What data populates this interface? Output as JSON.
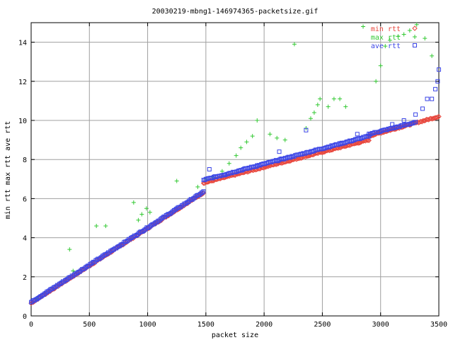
{
  "chart_data": {
    "type": "scatter",
    "title": "20030219-mbng1-146974365-packetsize.gif",
    "xlabel": "packet size",
    "ylabel": "min rtt max rtt ave rtt",
    "xlim": [
      0,
      3500
    ],
    "ylim": [
      0,
      15
    ],
    "xticks": [
      0,
      500,
      1000,
      1500,
      2000,
      2500,
      3000,
      3500
    ],
    "yticks": [
      0,
      2,
      4,
      6,
      8,
      10,
      12,
      14
    ],
    "grid": true,
    "legend_position": "top-right",
    "series": [
      {
        "name": "min rtt",
        "marker": "diamond",
        "color": "#e8463c",
        "segments": [
          {
            "x_range": [
              0,
              1480
            ],
            "y_range": [
              0.65,
              6.3
            ]
          },
          {
            "x_range": [
              1480,
              2900
            ],
            "y_range": [
              6.8,
              9.0
            ]
          },
          {
            "x_range": [
              2900,
              3500
            ],
            "y_range": [
              9.2,
              10.2
            ]
          }
        ]
      },
      {
        "name": "max rtt",
        "marker": "plus",
        "color": "#34c934",
        "points": [
          [
            50,
            0.9
          ],
          [
            330,
            3.4
          ],
          [
            360,
            2.3
          ],
          [
            560,
            4.6
          ],
          [
            640,
            4.6
          ],
          [
            880,
            5.8
          ],
          [
            920,
            4.9
          ],
          [
            950,
            5.2
          ],
          [
            990,
            5.5
          ],
          [
            1020,
            5.3
          ],
          [
            1250,
            6.9
          ],
          [
            1430,
            6.6
          ],
          [
            1500,
            7.0
          ],
          [
            1560,
            7.1
          ],
          [
            1640,
            7.4
          ],
          [
            1700,
            7.8
          ],
          [
            1760,
            8.2
          ],
          [
            1800,
            8.6
          ],
          [
            1850,
            8.9
          ],
          [
            1900,
            9.2
          ],
          [
            1940,
            10.0
          ],
          [
            2050,
            9.3
          ],
          [
            2110,
            9.1
          ],
          [
            2180,
            9.0
          ],
          [
            2260,
            13.9
          ],
          [
            2360,
            9.6
          ],
          [
            2400,
            10.1
          ],
          [
            2430,
            10.4
          ],
          [
            2460,
            10.8
          ],
          [
            2480,
            11.1
          ],
          [
            2550,
            10.7
          ],
          [
            2600,
            11.1
          ],
          [
            2650,
            11.1
          ],
          [
            2700,
            10.7
          ],
          [
            2850,
            14.8
          ],
          [
            2960,
            12.0
          ],
          [
            3000,
            12.8
          ],
          [
            3040,
            13.8
          ],
          [
            3080,
            14.1
          ],
          [
            3150,
            14.3
          ],
          [
            3200,
            14.4
          ],
          [
            3250,
            14.6
          ],
          [
            3310,
            14.9
          ],
          [
            3380,
            14.2
          ],
          [
            3440,
            13.3
          ]
        ]
      },
      {
        "name": "ave rtt",
        "marker": "square",
        "color": "#3c46e6",
        "segments": [
          {
            "x_range": [
              0,
              1480
            ],
            "y_range": [
              0.7,
              6.35
            ]
          },
          {
            "x_range": [
              1480,
              2900
            ],
            "y_range": [
              6.95,
              9.2
            ]
          },
          {
            "x_range": [
              2900,
              3300
            ],
            "y_range": [
              9.3,
              9.9
            ]
          }
        ],
        "points": [
          [
            1530,
            7.5
          ],
          [
            1660,
            7.2
          ],
          [
            1940,
            7.7
          ],
          [
            2130,
            8.4
          ],
          [
            2360,
            9.5
          ],
          [
            2800,
            9.3
          ],
          [
            3100,
            9.8
          ],
          [
            3200,
            10.0
          ],
          [
            3300,
            10.3
          ],
          [
            3360,
            10.6
          ],
          [
            3400,
            11.1
          ],
          [
            3440,
            11.1
          ],
          [
            3470,
            11.6
          ],
          [
            3490,
            12.0
          ],
          [
            3500,
            12.6
          ]
        ]
      }
    ]
  }
}
